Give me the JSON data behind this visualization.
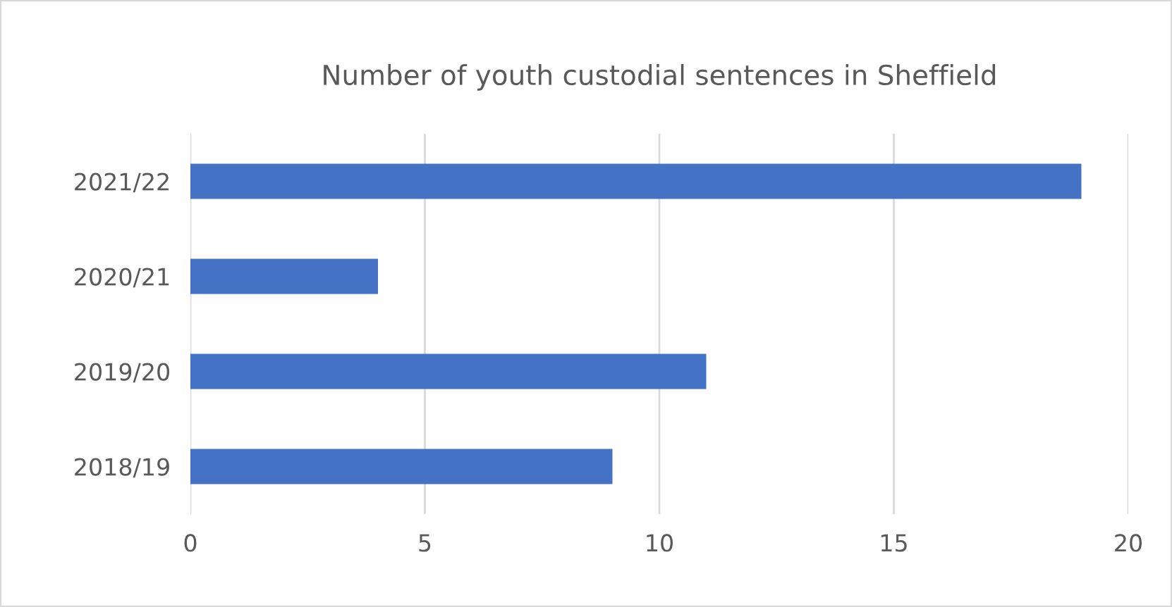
{
  "chart_data": {
    "type": "bar",
    "orientation": "horizontal",
    "title": "Number of youth custodial sentences in Sheffield",
    "categories": [
      "2021/22",
      "2020/21",
      "2019/20",
      "2018/19"
    ],
    "values": [
      19,
      4,
      11,
      9
    ],
    "color": "#4472c4",
    "xlim": [
      0,
      20
    ],
    "xticks": [
      0,
      5,
      10,
      15,
      20
    ],
    "grid": "x"
  }
}
